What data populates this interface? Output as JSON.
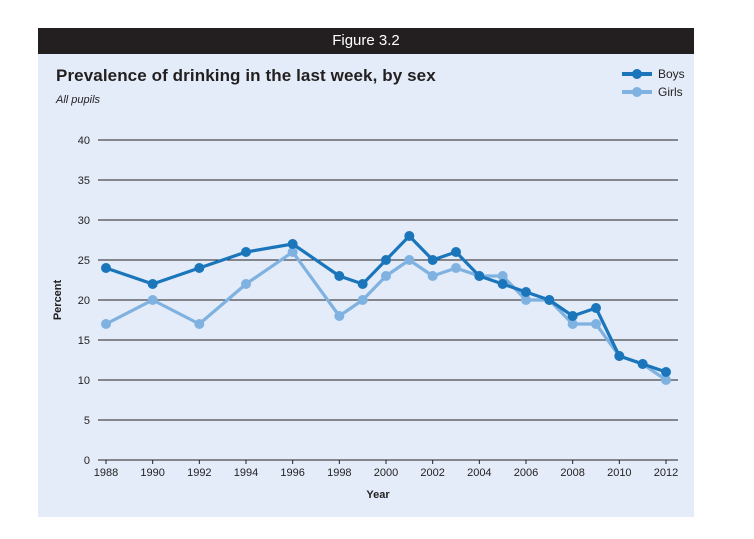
{
  "figure_label": "Figure 3.2",
  "chart_data": {
    "type": "line",
    "title": "Prevalence of drinking in the last week, by sex",
    "subtitle": "All pupils",
    "xlabel": "Year",
    "ylabel": "Percent",
    "ylim": [
      0,
      40
    ],
    "yticks": [
      "0",
      "5",
      "10",
      "15",
      "20",
      "25",
      "30",
      "35",
      "40"
    ],
    "xticks": [
      "1988",
      "1990",
      "1992",
      "1994",
      "1996",
      "1998",
      "2000",
      "2002",
      "2004",
      "2006",
      "2008",
      "2010",
      "2012"
    ],
    "x": [
      1988,
      1990,
      1992,
      1994,
      1996,
      1998,
      1999,
      2000,
      2001,
      2002,
      2003,
      2004,
      2005,
      2006,
      2007,
      2008,
      2009,
      2010,
      2011,
      2012
    ],
    "grid": "horizontal",
    "legend_position": "top-right",
    "series": [
      {
        "name": "Boys",
        "color": "#1a75bb",
        "values": [
          24,
          22,
          24,
          26,
          27,
          23,
          22,
          25,
          28,
          25,
          26,
          23,
          22,
          21,
          20,
          18,
          19,
          13,
          12,
          11
        ]
      },
      {
        "name": "Girls",
        "color": "#7fb2e0",
        "values": [
          17,
          20,
          17,
          22,
          26,
          18,
          20,
          23,
          25,
          23,
          24,
          23,
          23,
          20,
          20,
          17,
          17,
          13,
          12,
          10
        ]
      }
    ]
  }
}
